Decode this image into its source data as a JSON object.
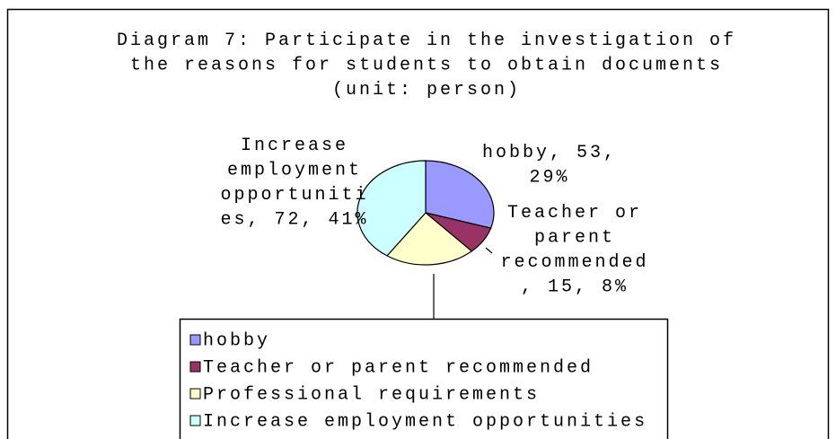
{
  "chart_data": {
    "type": "pie",
    "title": "Diagram 7: Participate in the investigation of the reasons for students to obtain documents (unit: person)",
    "categories": [
      "hobby",
      "Teacher or parent recommended",
      "Professional requirements",
      "Increase employment opportunities"
    ],
    "values": [
      53,
      15,
      38,
      72
    ],
    "value_labels": [
      "hobby, 53, 29%",
      "Teacher or parent recommended, 15, 8%",
      null,
      "Increase employment opportunities, 72, 41%"
    ],
    "colors": [
      "#9999ff",
      "#993366",
      "#ffffcc",
      "#ccffff"
    ],
    "legend": "bottom"
  }
}
